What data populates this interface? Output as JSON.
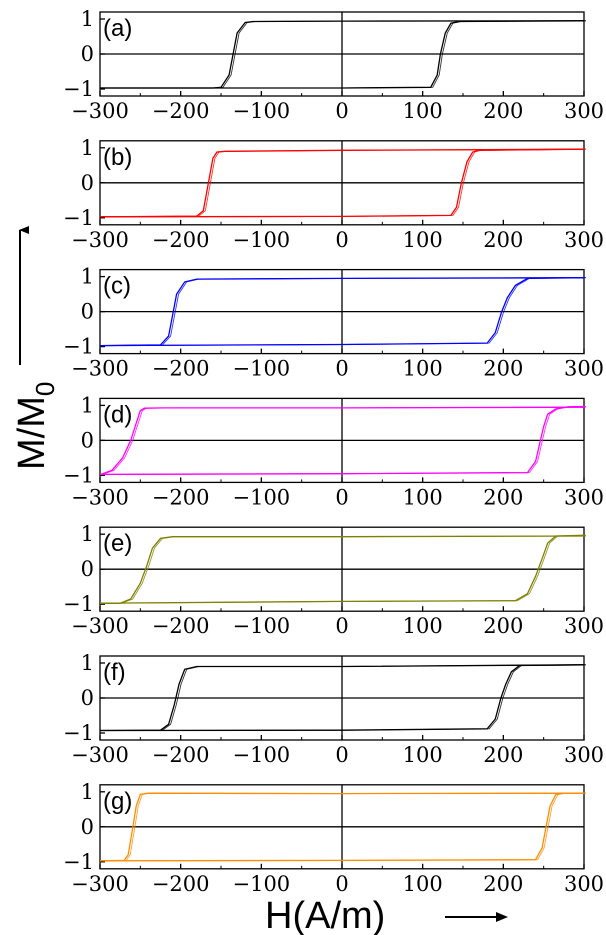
{
  "figure": {
    "ylabel": "M/M",
    "ylabel_sub": "0",
    "xlabel": "H(A/m)"
  },
  "chart_data": [
    {
      "type": "line",
      "panel_label": "(a)",
      "color": "#000000",
      "x_ticks": [
        "−300",
        "−200",
        "−100",
        "0",
        "100",
        "200",
        "300"
      ],
      "y_ticks": [
        "1",
        "0",
        "−1"
      ],
      "xlim": [
        -300,
        300
      ],
      "ylim": [
        -1.2,
        1.2
      ],
      "series": [
        {
          "x": [
            -300,
            -160,
            -150,
            -140,
            -135,
            -130,
            -120,
            -110,
            0,
            300
          ],
          "y": [
            -0.97,
            -0.97,
            -0.95,
            -0.6,
            0,
            0.6,
            0.9,
            0.93,
            0.94,
            0.95
          ]
        },
        {
          "x": [
            -300,
            0,
            110,
            118,
            122,
            128,
            135,
            145,
            300
          ],
          "y": [
            -0.97,
            -0.97,
            -0.95,
            -0.6,
            0,
            0.6,
            0.88,
            0.93,
            0.95
          ]
        }
      ]
    },
    {
      "type": "line",
      "panel_label": "(b)",
      "color": "#ff0000",
      "x_ticks": [
        "−300",
        "−200",
        "−100",
        "0",
        "100",
        "200",
        "300"
      ],
      "y_ticks": [
        "1",
        "0",
        "−1"
      ],
      "xlim": [
        -300,
        300
      ],
      "ylim": [
        -1.2,
        1.2
      ],
      "series": [
        {
          "x": [
            -300,
            -180,
            -172,
            -168,
            -164,
            -160,
            -155,
            -145,
            0,
            300
          ],
          "y": [
            -0.97,
            -0.95,
            -0.8,
            -0.3,
            0.2,
            0.7,
            0.88,
            0.9,
            0.93,
            0.96
          ]
        },
        {
          "x": [
            -300,
            0,
            135,
            142,
            148,
            155,
            162,
            170,
            300
          ],
          "y": [
            -0.97,
            -0.96,
            -0.93,
            -0.7,
            0,
            0.6,
            0.88,
            0.93,
            0.96
          ]
        }
      ]
    },
    {
      "type": "line",
      "panel_label": "(c)",
      "color": "#0000ff",
      "x_ticks": [
        "−300",
        "−200",
        "−100",
        "0",
        "100",
        "200",
        "300"
      ],
      "y_ticks": [
        "1",
        "0",
        "−1"
      ],
      "xlim": [
        -300,
        300
      ],
      "ylim": [
        -1.2,
        1.2
      ],
      "series": [
        {
          "x": [
            -300,
            -225,
            -215,
            -210,
            -205,
            -195,
            -180,
            0,
            300
          ],
          "y": [
            -0.97,
            -0.95,
            -0.7,
            -0.1,
            0.5,
            0.85,
            0.93,
            0.95,
            0.97
          ]
        },
        {
          "x": [
            -300,
            0,
            180,
            190,
            198,
            205,
            215,
            230,
            300
          ],
          "y": [
            -0.97,
            -0.94,
            -0.9,
            -0.6,
            0,
            0.4,
            0.75,
            0.95,
            0.97
          ]
        }
      ]
    },
    {
      "type": "line",
      "panel_label": "(d)",
      "color": "#ff00ff",
      "x_ticks": [
        "−300",
        "−200",
        "−100",
        "0",
        "100",
        "200",
        "300"
      ],
      "y_ticks": [
        "1",
        "0",
        "−1"
      ],
      "xlim": [
        -300,
        300
      ],
      "ylim": [
        -1.2,
        1.2
      ],
      "series": [
        {
          "x": [
            -300,
            -285,
            -272,
            -262,
            -255,
            -250,
            -245,
            -220,
            0,
            300
          ],
          "y": [
            -0.98,
            -0.85,
            -0.5,
            0,
            0.5,
            0.85,
            0.92,
            0.93,
            0.93,
            0.95
          ]
        },
        {
          "x": [
            -300,
            0,
            230,
            240,
            245,
            250,
            255,
            265,
            280,
            300
          ],
          "y": [
            -0.97,
            -0.95,
            -0.92,
            -0.6,
            -0.1,
            0.4,
            0.75,
            0.9,
            0.96,
            0.97
          ]
        }
      ]
    },
    {
      "type": "line",
      "panel_label": "(e)",
      "color": "#808000",
      "x_ticks": [
        "−300",
        "−200",
        "−100",
        "0",
        "100",
        "200",
        "300"
      ],
      "y_ticks": [
        "1",
        "0",
        "−1"
      ],
      "xlim": [
        -300,
        300
      ],
      "ylim": [
        -1.2,
        1.2
      ],
      "series": [
        {
          "x": [
            -300,
            -275,
            -262,
            -250,
            -242,
            -235,
            -225,
            -210,
            0,
            300
          ],
          "y": [
            -0.98,
            -0.97,
            -0.85,
            -0.4,
            0.1,
            0.6,
            0.88,
            0.93,
            0.93,
            0.95
          ]
        },
        {
          "x": [
            -300,
            0,
            215,
            230,
            240,
            248,
            255,
            265,
            300
          ],
          "y": [
            -0.97,
            -0.92,
            -0.9,
            -0.7,
            -0.2,
            0.3,
            0.75,
            0.95,
            0.97
          ]
        }
      ]
    },
    {
      "type": "line",
      "panel_label": "(f)",
      "color": "#000000",
      "x_ticks": [
        "−300",
        "−200",
        "−100",
        "0",
        "100",
        "200",
        "300"
      ],
      "y_ticks": [
        "1",
        "0",
        "−1"
      ],
      "xlim": [
        -300,
        300
      ],
      "ylim": [
        -1.2,
        1.2
      ],
      "series": [
        {
          "x": [
            -300,
            -225,
            -215,
            -208,
            -202,
            -195,
            -180,
            0,
            300
          ],
          "y": [
            -0.93,
            -0.92,
            -0.75,
            -0.2,
            0.4,
            0.82,
            0.9,
            0.9,
            0.95
          ]
        },
        {
          "x": [
            -300,
            0,
            180,
            190,
            197,
            203,
            210,
            220,
            300
          ],
          "y": [
            -0.93,
            -0.92,
            -0.88,
            -0.6,
            0,
            0.4,
            0.75,
            0.93,
            0.95
          ]
        }
      ]
    },
    {
      "type": "line",
      "panel_label": "(g)",
      "color": "#ff8c00",
      "x_ticks": [
        "−300",
        "−200",
        "−100",
        "0",
        "100",
        "200",
        "300"
      ],
      "y_ticks": [
        "1",
        "0",
        "−1"
      ],
      "xlim": [
        -300,
        300
      ],
      "ylim": [
        -1.2,
        1.2
      ],
      "series": [
        {
          "x": [
            -300,
            -270,
            -265,
            -260,
            -255,
            -250,
            -240,
            0,
            300
          ],
          "y": [
            -0.97,
            -0.96,
            -0.8,
            -0.1,
            0.6,
            0.93,
            0.96,
            0.95,
            0.96
          ]
        },
        {
          "x": [
            -300,
            0,
            240,
            248,
            253,
            258,
            265,
            275,
            300
          ],
          "y": [
            -0.97,
            -0.96,
            -0.94,
            -0.6,
            0,
            0.6,
            0.92,
            0.96,
            0.96
          ]
        }
      ]
    }
  ]
}
